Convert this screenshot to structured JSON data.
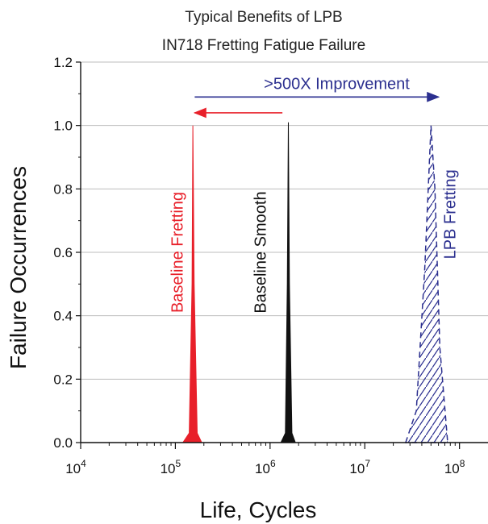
{
  "chart_data": {
    "type": "area",
    "title": "Typical Benefits of LPB",
    "subtitle": "IN718 Fretting Fatigue Failure",
    "xlabel": "Life, Cycles",
    "ylabel": "Failure Occurrences",
    "xscale": "log",
    "xlim": [
      10000,
      200000000
    ],
    "ylim": [
      0,
      1.2
    ],
    "x_ticks": [
      {
        "base": "10",
        "exp": "4",
        "value": 10000
      },
      {
        "base": "10",
        "exp": "5",
        "value": 100000
      },
      {
        "base": "10",
        "exp": "6",
        "value": 1000000
      },
      {
        "base": "10",
        "exp": "7",
        "value": 10000000
      },
      {
        "base": "10",
        "exp": "8",
        "value": 100000000
      }
    ],
    "y_ticks": [
      "0.0",
      "0.2",
      "0.4",
      "0.6",
      "0.8",
      "1.0",
      "1.2"
    ],
    "grid": "horizontal",
    "series": [
      {
        "name": "Baseline Fretting",
        "color": "#e8202a",
        "style": "solid-fill",
        "x": [
          120000,
          140000,
          150000,
          153000,
          158000,
          170000,
          190000
        ],
        "y": [
          0,
          0.03,
          0.5,
          1.0,
          0.5,
          0.03,
          0
        ]
      },
      {
        "name": "Baseline Smooth",
        "color": "#111111",
        "style": "solid-fill",
        "x": [
          1300000,
          1450000,
          1520000,
          1560000,
          1600000,
          1700000,
          1850000
        ],
        "y": [
          0,
          0.03,
          0.5,
          1.01,
          0.5,
          0.03,
          0
        ]
      },
      {
        "name": "LPB Fretting",
        "color": "#2b2f8f",
        "style": "hatched-dashed",
        "x": [
          27000000,
          35000000,
          43000000,
          50000000,
          55000000,
          62000000,
          75000000
        ],
        "y": [
          0,
          0.1,
          0.55,
          1.0,
          0.8,
          0.3,
          0
        ]
      }
    ],
    "annotations": [
      {
        "text": ">500X Improvement",
        "color": "#2b2f8f",
        "arrow_from": 160000,
        "arrow_to": 60000000,
        "y": 1.09
      },
      {
        "text": "",
        "color": "#e8202a",
        "arrow_from": 1350000,
        "arrow_to": 160000,
        "y": 1.04
      }
    ]
  }
}
